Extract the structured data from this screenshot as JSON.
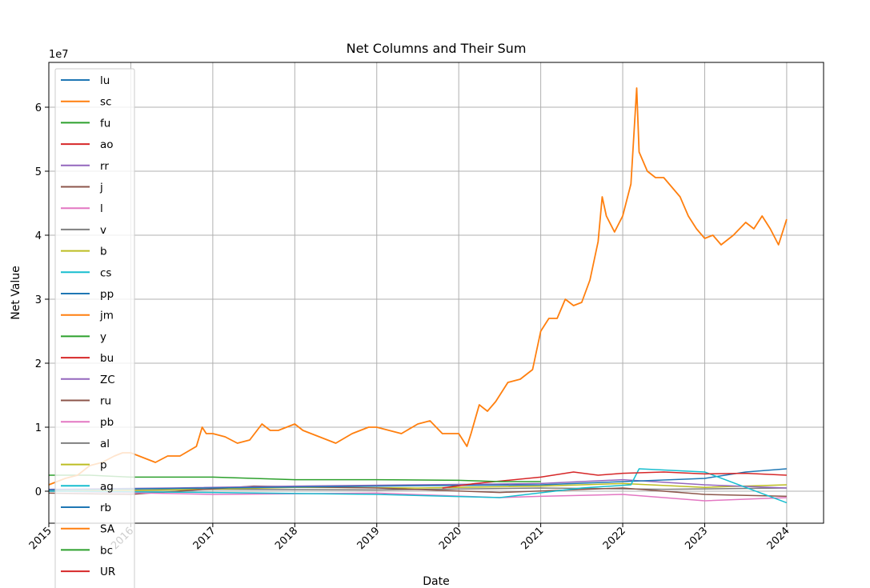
{
  "chart_data": {
    "type": "line",
    "title": "Net Columns and Their Sum",
    "xlabel": "Date",
    "ylabel": "Net Value",
    "y_multiplier_label": "1e7",
    "grid": true,
    "legend_position": "upper-left",
    "xlim": [
      2015.0,
      2024.45
    ],
    "ylim": [
      -0.5,
      6.7
    ],
    "x_ticks": [
      2015,
      2016,
      2017,
      2018,
      2019,
      2020,
      2021,
      2022,
      2023,
      2024
    ],
    "x_tick_labels": [
      "2015",
      "2016",
      "2017",
      "2018",
      "2019",
      "2020",
      "2021",
      "2022",
      "2023",
      "2024"
    ],
    "y_ticks": [
      0,
      1,
      2,
      3,
      4,
      5,
      6
    ],
    "y_tick_labels": [
      "0",
      "1",
      "2",
      "3",
      "4",
      "5",
      "6"
    ],
    "legend": [
      {
        "name": "lu",
        "color": "#1f77b4"
      },
      {
        "name": "sc",
        "color": "#ff7f0e"
      },
      {
        "name": "fu",
        "color": "#2ca02c"
      },
      {
        "name": "ao",
        "color": "#d62728"
      },
      {
        "name": "rr",
        "color": "#9467bd"
      },
      {
        "name": "j",
        "color": "#8c564b"
      },
      {
        "name": "l",
        "color": "#e377c2"
      },
      {
        "name": "v",
        "color": "#7f7f7f"
      },
      {
        "name": "b",
        "color": "#bcbd22"
      },
      {
        "name": "cs",
        "color": "#17becf"
      },
      {
        "name": "pp",
        "color": "#1f77b4"
      },
      {
        "name": "jm",
        "color": "#ff7f0e"
      },
      {
        "name": "y",
        "color": "#2ca02c"
      },
      {
        "name": "bu",
        "color": "#d62728"
      },
      {
        "name": "ZC",
        "color": "#9467bd"
      },
      {
        "name": "ru",
        "color": "#8c564b"
      },
      {
        "name": "pb",
        "color": "#e377c2"
      },
      {
        "name": "al",
        "color": "#7f7f7f"
      },
      {
        "name": "p",
        "color": "#bcbd22"
      },
      {
        "name": "ag",
        "color": "#17becf"
      },
      {
        "name": "rb",
        "color": "#1f77b4"
      },
      {
        "name": "SA",
        "color": "#ff7f0e"
      },
      {
        "name": "bc",
        "color": "#2ca02c"
      },
      {
        "name": "UR",
        "color": "#d62728"
      }
    ],
    "series": [
      {
        "name": "sum (main orange)",
        "color": "#ff7f0e",
        "x": [
          2015.0,
          2015.2,
          2015.35,
          2015.5,
          2015.65,
          2015.8,
          2015.9,
          2016.0,
          2016.1,
          2016.3,
          2016.45,
          2016.6,
          2016.8,
          2016.87,
          2016.92,
          2017.0,
          2017.15,
          2017.3,
          2017.45,
          2017.6,
          2017.7,
          2017.8,
          2018.0,
          2018.1,
          2018.3,
          2018.5,
          2018.7,
          2018.9,
          2019.0,
          2019.15,
          2019.3,
          2019.5,
          2019.65,
          2019.8,
          2020.0,
          2020.1,
          2020.15,
          2020.25,
          2020.35,
          2020.45,
          2020.6,
          2020.75,
          2020.9,
          2021.0,
          2021.1,
          2021.2,
          2021.3,
          2021.4,
          2021.5,
          2021.6,
          2021.7,
          2021.75,
          2021.8,
          2021.9,
          2022.0,
          2022.1,
          2022.17,
          2022.2,
          2022.3,
          2022.4,
          2022.5,
          2022.6,
          2022.7,
          2022.8,
          2022.9,
          2023.0,
          2023.1,
          2023.2,
          2023.35,
          2023.5,
          2023.6,
          2023.7,
          2023.8,
          2023.9,
          2024.0
        ],
        "y": [
          0.1,
          0.2,
          0.25,
          0.4,
          0.45,
          0.55,
          0.6,
          0.6,
          0.55,
          0.45,
          0.55,
          0.55,
          0.7,
          1.0,
          0.9,
          0.9,
          0.85,
          0.75,
          0.8,
          1.05,
          0.95,
          0.95,
          1.05,
          0.95,
          0.85,
          0.75,
          0.9,
          1.0,
          1.0,
          0.95,
          0.9,
          1.05,
          1.1,
          0.9,
          0.9,
          0.7,
          0.9,
          1.35,
          1.25,
          1.4,
          1.7,
          1.75,
          1.9,
          2.5,
          2.7,
          2.7,
          3.0,
          2.9,
          2.95,
          3.3,
          3.9,
          4.6,
          4.3,
          4.05,
          4.3,
          4.8,
          6.3,
          5.3,
          5.0,
          4.9,
          4.9,
          4.75,
          4.6,
          4.3,
          4.1,
          3.95,
          4.0,
          3.85,
          4.0,
          4.2,
          4.1,
          4.3,
          4.1,
          3.85,
          4.25
        ]
      },
      {
        "name": "fu",
        "color": "#2ca02c",
        "x": [
          2015.0,
          2015.5,
          2016.0,
          2017.0,
          2017.5,
          2018.0,
          2019.0,
          2020.0,
          2020.5,
          2021.0
        ],
        "y": [
          0.25,
          0.25,
          0.22,
          0.22,
          0.2,
          0.18,
          0.18,
          0.17,
          0.15,
          0.15
        ]
      },
      {
        "name": "ao",
        "color": "#d62728",
        "x": [
          2019.8,
          2020.2,
          2021.0,
          2021.4,
          2021.7,
          2022.0,
          2022.5,
          2023.0,
          2023.5,
          2024.0
        ],
        "y": [
          0.05,
          0.12,
          0.22,
          0.3,
          0.25,
          0.28,
          0.3,
          0.27,
          0.28,
          0.25
        ]
      },
      {
        "name": "ag",
        "color": "#17becf",
        "x": [
          2015.0,
          2017.0,
          2019.0,
          2020.5,
          2021.5,
          2022.1,
          2022.2,
          2023.0,
          2024.0
        ],
        "y": [
          0.0,
          -0.02,
          -0.05,
          -0.1,
          0.05,
          0.1,
          0.35,
          0.3,
          -0.18
        ]
      },
      {
        "name": "rb",
        "color": "#1f77b4",
        "x": [
          2015.0,
          2017.0,
          2019.0,
          2021.0,
          2022.0,
          2023.0,
          2023.5,
          2024.0
        ],
        "y": [
          0.02,
          0.05,
          0.08,
          0.1,
          0.15,
          0.2,
          0.3,
          0.35
        ]
      },
      {
        "name": "l",
        "color": "#e377c2",
        "x": [
          2015.0,
          2017.0,
          2019.0,
          2020.5,
          2021.0,
          2022.0,
          2023.0,
          2024.0
        ],
        "y": [
          0.0,
          -0.05,
          -0.03,
          -0.1,
          -0.08,
          -0.05,
          -0.15,
          -0.1
        ]
      },
      {
        "name": "rr",
        "color": "#9467bd",
        "x": [
          2015.0,
          2016.5,
          2018.0,
          2019.5,
          2021.0,
          2022.0,
          2023.0,
          2024.0
        ],
        "y": [
          0.03,
          0.05,
          0.08,
          0.1,
          0.12,
          0.18,
          0.1,
          0.05
        ]
      },
      {
        "name": "j",
        "color": "#8c564b",
        "x": [
          2015.0,
          2016.0,
          2017.5,
          2019.0,
          2020.5,
          2022.0,
          2023.0,
          2024.0
        ],
        "y": [
          -0.03,
          -0.05,
          0.08,
          0.05,
          -0.02,
          0.05,
          -0.05,
          -0.08
        ]
      },
      {
        "name": "b",
        "color": "#bcbd22",
        "x": [
          2015.0,
          2016.5,
          2018.0,
          2019.5,
          2021.0,
          2022.0,
          2023.0,
          2024.0
        ],
        "y": [
          0.0,
          0.02,
          0.06,
          0.05,
          0.08,
          0.12,
          0.06,
          0.1
        ]
      },
      {
        "name": "v",
        "color": "#7f7f7f",
        "x": [
          2015.0,
          2017.0,
          2019.0,
          2021.0,
          2022.5,
          2024.0
        ],
        "y": [
          0.0,
          0.03,
          0.02,
          0.05,
          0.03,
          0.05
        ]
      }
    ]
  }
}
